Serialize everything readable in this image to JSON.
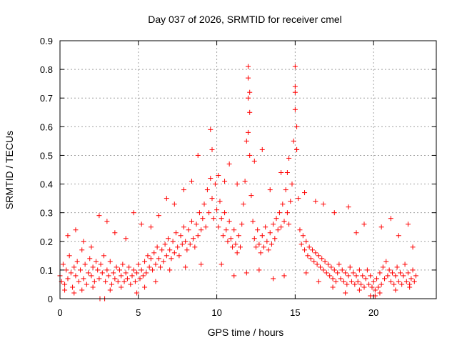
{
  "chart_data": {
    "type": "scatter",
    "title": "Day 037 of 2026, SRMTID for receiver cmel",
    "xlabel": "GPS time / hours",
    "ylabel": "SRMTID / TECUs",
    "xlim": [
      0,
      24
    ],
    "ylim": [
      0,
      0.9
    ],
    "xticks": [
      0,
      5,
      10,
      15,
      20
    ],
    "xtick_labels": [
      "0",
      "5",
      "10",
      "15",
      "20"
    ],
    "yticks": [
      0,
      0.1,
      0.2,
      0.3,
      0.4,
      0.5,
      0.6,
      0.7,
      0.8,
      0.9
    ],
    "ytick_labels": [
      "0",
      "0.1",
      "0.2",
      "0.3",
      "0.4",
      "0.5",
      "0.6",
      "0.7",
      "0.8",
      "0.9"
    ],
    "grid": true,
    "marker": "+",
    "color": "#ff0000",
    "series": [
      {
        "name": "SRMTID",
        "points": [
          [
            0.0,
            0.08
          ],
          [
            0.1,
            0.06
          ],
          [
            0.2,
            0.12
          ],
          [
            0.3,
            0.05
          ],
          [
            0.4,
            0.1
          ],
          [
            0.5,
            0.07
          ],
          [
            0.6,
            0.15
          ],
          [
            0.7,
            0.09
          ],
          [
            0.8,
            0.04
          ],
          [
            0.9,
            0.11
          ],
          [
            1.0,
            0.08
          ],
          [
            1.1,
            0.13
          ],
          [
            1.2,
            0.06
          ],
          [
            1.3,
            0.1
          ],
          [
            1.4,
            0.17
          ],
          [
            1.5,
            0.07
          ],
          [
            1.6,
            0.12
          ],
          [
            1.7,
            0.05
          ],
          [
            1.8,
            0.09
          ],
          [
            1.9,
            0.14
          ],
          [
            2.0,
            0.08
          ],
          [
            2.1,
            0.11
          ],
          [
            2.2,
            0.06
          ],
          [
            2.3,
            0.13
          ],
          [
            2.4,
            0.1
          ],
          [
            2.5,
            0.07
          ],
          [
            2.6,
            0.12
          ],
          [
            2.7,
            0.09
          ],
          [
            2.8,
            0.15
          ],
          [
            2.9,
            0.06
          ],
          [
            3.0,
            0.1
          ],
          [
            3.1,
            0.08
          ],
          [
            3.2,
            0.13
          ],
          [
            3.3,
            0.05
          ],
          [
            3.4,
            0.09
          ],
          [
            3.5,
            0.07
          ],
          [
            3.6,
            0.11
          ],
          [
            3.7,
            0.06
          ],
          [
            3.8,
            0.1
          ],
          [
            3.9,
            0.08
          ],
          [
            4.0,
            0.12
          ],
          [
            4.1,
            0.06
          ],
          [
            4.2,
            0.09
          ],
          [
            4.3,
            0.07
          ],
          [
            4.4,
            0.11
          ],
          [
            4.5,
            0.05
          ],
          [
            4.6,
            0.08
          ],
          [
            4.7,
            0.1
          ],
          [
            4.8,
            0.06
          ],
          [
            4.9,
            0.09
          ],
          [
            5.0,
            0.12
          ],
          [
            5.1,
            0.07
          ],
          [
            5.2,
            0.1
          ],
          [
            5.3,
            0.08
          ],
          [
            5.4,
            0.13
          ],
          [
            5.5,
            0.09
          ],
          [
            5.6,
            0.15
          ],
          [
            5.7,
            0.11
          ],
          [
            5.8,
            0.14
          ],
          [
            5.9,
            0.1
          ],
          [
            6.0,
            0.16
          ],
          [
            6.1,
            0.12
          ],
          [
            6.2,
            0.18
          ],
          [
            6.3,
            0.14
          ],
          [
            6.4,
            0.11
          ],
          [
            6.5,
            0.17
          ],
          [
            6.6,
            0.13
          ],
          [
            6.7,
            0.19
          ],
          [
            6.8,
            0.15
          ],
          [
            6.9,
            0.21
          ],
          [
            7.0,
            0.17
          ],
          [
            7.1,
            0.14
          ],
          [
            7.2,
            0.2
          ],
          [
            7.3,
            0.16
          ],
          [
            7.4,
            0.23
          ],
          [
            7.5,
            0.18
          ],
          [
            7.6,
            0.15
          ],
          [
            7.7,
            0.22
          ],
          [
            7.8,
            0.19
          ],
          [
            7.9,
            0.25
          ],
          [
            8.0,
            0.2
          ],
          [
            8.1,
            0.17
          ],
          [
            8.2,
            0.24
          ],
          [
            8.3,
            0.19
          ],
          [
            8.4,
            0.27
          ],
          [
            8.5,
            0.21
          ],
          [
            8.6,
            0.18
          ],
          [
            8.7,
            0.26
          ],
          [
            8.8,
            0.22
          ],
          [
            8.9,
            0.3
          ],
          [
            9.0,
            0.24
          ],
          [
            9.1,
            0.28
          ],
          [
            9.2,
            0.33
          ],
          [
            9.3,
            0.25
          ],
          [
            9.4,
            0.38
          ],
          [
            9.5,
            0.3
          ],
          [
            9.6,
            0.42
          ],
          [
            9.7,
            0.35
          ],
          [
            9.8,
            0.28
          ],
          [
            9.9,
            0.4
          ],
          [
            10.0,
            0.31
          ],
          [
            10.1,
            0.25
          ],
          [
            10.2,
            0.34
          ],
          [
            10.3,
            0.28
          ],
          [
            10.4,
            0.22
          ],
          [
            10.5,
            0.3
          ],
          [
            10.6,
            0.24
          ],
          [
            10.7,
            0.2
          ],
          [
            10.8,
            0.27
          ],
          [
            10.9,
            0.21
          ],
          [
            11.0,
            0.18
          ],
          [
            11.1,
            0.24
          ],
          [
            11.2,
            0.19
          ],
          [
            11.3,
            0.16
          ],
          [
            11.4,
            0.22
          ],
          [
            11.5,
            0.18
          ],
          [
            11.6,
            0.26
          ],
          [
            11.7,
            0.33
          ],
          [
            11.8,
            0.41
          ],
          [
            11.9,
            0.55
          ],
          [
            12.0,
            0.7
          ],
          [
            12.1,
            0.5
          ],
          [
            12.2,
            0.36
          ],
          [
            12.3,
            0.27
          ],
          [
            12.4,
            0.21
          ],
          [
            12.5,
            0.18
          ],
          [
            12.6,
            0.24
          ],
          [
            12.7,
            0.19
          ],
          [
            12.8,
            0.16
          ],
          [
            12.9,
            0.22
          ],
          [
            13.0,
            0.18
          ],
          [
            13.1,
            0.25
          ],
          [
            13.2,
            0.2
          ],
          [
            13.3,
            0.17
          ],
          [
            13.4,
            0.23
          ],
          [
            13.5,
            0.19
          ],
          [
            13.6,
            0.26
          ],
          [
            13.7,
            0.21
          ],
          [
            13.8,
            0.28
          ],
          [
            13.9,
            0.24
          ],
          [
            14.0,
            0.3
          ],
          [
            14.1,
            0.25
          ],
          [
            14.2,
            0.33
          ],
          [
            14.3,
            0.27
          ],
          [
            14.4,
            0.38
          ],
          [
            14.5,
            0.3
          ],
          [
            14.6,
            0.26
          ],
          [
            14.7,
            0.34
          ],
          [
            14.8,
            0.4
          ],
          [
            14.9,
            0.55
          ],
          [
            15.0,
            0.72
          ],
          [
            15.1,
            0.52
          ],
          [
            15.2,
            0.35
          ],
          [
            15.3,
            0.24
          ],
          [
            15.4,
            0.19
          ],
          [
            15.5,
            0.22
          ],
          [
            15.6,
            0.17
          ],
          [
            15.7,
            0.2
          ],
          [
            15.8,
            0.15
          ],
          [
            15.9,
            0.18
          ],
          [
            16.0,
            0.14
          ],
          [
            16.1,
            0.17
          ],
          [
            16.2,
            0.13
          ],
          [
            16.3,
            0.16
          ],
          [
            16.4,
            0.12
          ],
          [
            16.5,
            0.15
          ],
          [
            16.6,
            0.11
          ],
          [
            16.7,
            0.14
          ],
          [
            16.8,
            0.1
          ],
          [
            16.9,
            0.13
          ],
          [
            17.0,
            0.09
          ],
          [
            17.1,
            0.12
          ],
          [
            17.2,
            0.08
          ],
          [
            17.3,
            0.11
          ],
          [
            17.4,
            0.07
          ],
          [
            17.5,
            0.1
          ],
          [
            17.6,
            0.06
          ],
          [
            17.7,
            0.09
          ],
          [
            17.8,
            0.12
          ],
          [
            17.9,
            0.07
          ],
          [
            18.0,
            0.1
          ],
          [
            18.1,
            0.06
          ],
          [
            18.2,
            0.09
          ],
          [
            18.3,
            0.05
          ],
          [
            18.4,
            0.08
          ],
          [
            18.5,
            0.11
          ],
          [
            18.6,
            0.06
          ],
          [
            18.7,
            0.09
          ],
          [
            18.8,
            0.05
          ],
          [
            18.9,
            0.08
          ],
          [
            19.0,
            0.06
          ],
          [
            19.1,
            0.1
          ],
          [
            19.2,
            0.05
          ],
          [
            19.3,
            0.08
          ],
          [
            19.4,
            0.04
          ],
          [
            19.5,
            0.07
          ],
          [
            19.6,
            0.1
          ],
          [
            19.7,
            0.05
          ],
          [
            19.8,
            0.08
          ],
          [
            19.9,
            0.04
          ],
          [
            20.0,
            0.06
          ],
          [
            20.1,
            0.03
          ],
          [
            20.2,
            0.07
          ],
          [
            20.3,
            0.04
          ],
          [
            20.4,
            0.09
          ],
          [
            20.5,
            0.05
          ],
          [
            20.6,
            0.11
          ],
          [
            20.7,
            0.07
          ],
          [
            20.8,
            0.13
          ],
          [
            20.9,
            0.08
          ],
          [
            21.0,
            0.1
          ],
          [
            21.1,
            0.06
          ],
          [
            21.2,
            0.09
          ],
          [
            21.3,
            0.05
          ],
          [
            21.4,
            0.08
          ],
          [
            21.5,
            0.11
          ],
          [
            21.6,
            0.06
          ],
          [
            21.7,
            0.09
          ],
          [
            21.8,
            0.05
          ],
          [
            21.9,
            0.08
          ],
          [
            22.0,
            0.12
          ],
          [
            22.1,
            0.06
          ],
          [
            22.2,
            0.09
          ],
          [
            22.3,
            0.05
          ],
          [
            22.4,
            0.07
          ],
          [
            22.5,
            0.1
          ],
          [
            22.6,
            0.06
          ],
          [
            22.7,
            0.08
          ],
          [
            0.5,
            0.22
          ],
          [
            1.0,
            0.24
          ],
          [
            1.5,
            0.2
          ],
          [
            2.0,
            0.18
          ],
          [
            2.5,
            0.29
          ],
          [
            3.0,
            0.27
          ],
          [
            3.5,
            0.23
          ],
          [
            4.2,
            0.21
          ],
          [
            4.7,
            0.3
          ],
          [
            5.2,
            0.26
          ],
          [
            5.8,
            0.25
          ],
          [
            6.3,
            0.29
          ],
          [
            6.8,
            0.35
          ],
          [
            7.3,
            0.33
          ],
          [
            7.9,
            0.38
          ],
          [
            8.4,
            0.41
          ],
          [
            8.8,
            0.5
          ],
          [
            9.6,
            0.59
          ],
          [
            9.7,
            0.52
          ],
          [
            10.1,
            0.43
          ],
          [
            10.5,
            0.41
          ],
          [
            10.8,
            0.47
          ],
          [
            11.3,
            0.4
          ],
          [
            12.0,
            0.81
          ],
          [
            12.0,
            0.77
          ],
          [
            12.1,
            0.72
          ],
          [
            12.1,
            0.65
          ],
          [
            12.0,
            0.58
          ],
          [
            12.4,
            0.48
          ],
          [
            12.9,
            0.52
          ],
          [
            13.4,
            0.38
          ],
          [
            14.1,
            0.44
          ],
          [
            14.5,
            0.44
          ],
          [
            14.6,
            0.49
          ],
          [
            15.0,
            0.81
          ],
          [
            15.0,
            0.74
          ],
          [
            15.0,
            0.66
          ],
          [
            15.1,
            0.6
          ],
          [
            15.1,
            0.52
          ],
          [
            15.6,
            0.37
          ],
          [
            16.3,
            0.34
          ],
          [
            16.8,
            0.33
          ],
          [
            17.5,
            0.3
          ],
          [
            18.4,
            0.32
          ],
          [
            18.9,
            0.23
          ],
          [
            19.4,
            0.26
          ],
          [
            20.5,
            0.25
          ],
          [
            21.1,
            0.28
          ],
          [
            21.6,
            0.22
          ],
          [
            22.2,
            0.26
          ],
          [
            22.5,
            0.18
          ],
          [
            0.3,
            0.03
          ],
          [
            0.9,
            0.02
          ],
          [
            1.4,
            0.03
          ],
          [
            2.1,
            0.04
          ],
          [
            3.2,
            0.03
          ],
          [
            3.9,
            0.04
          ],
          [
            4.9,
            0.02
          ],
          [
            5.4,
            0.04
          ],
          [
            6.1,
            0.06
          ],
          [
            7.0,
            0.1
          ],
          [
            8.0,
            0.11
          ],
          [
            9.0,
            0.12
          ],
          [
            10.3,
            0.12
          ],
          [
            11.1,
            0.08
          ],
          [
            11.9,
            0.09
          ],
          [
            12.7,
            0.1
          ],
          [
            13.6,
            0.07
          ],
          [
            14.3,
            0.08
          ],
          [
            15.7,
            0.09
          ],
          [
            16.5,
            0.06
          ],
          [
            17.4,
            0.04
          ],
          [
            18.2,
            0.02
          ],
          [
            19.1,
            0.03
          ],
          [
            19.8,
            0.01
          ],
          [
            20.1,
            0.01
          ],
          [
            20.4,
            0.02
          ],
          [
            21.4,
            0.03
          ],
          [
            22.3,
            0.04
          ],
          [
            2.55,
            0.0
          ],
          [
            2.85,
            0.0
          ]
        ]
      }
    ]
  }
}
